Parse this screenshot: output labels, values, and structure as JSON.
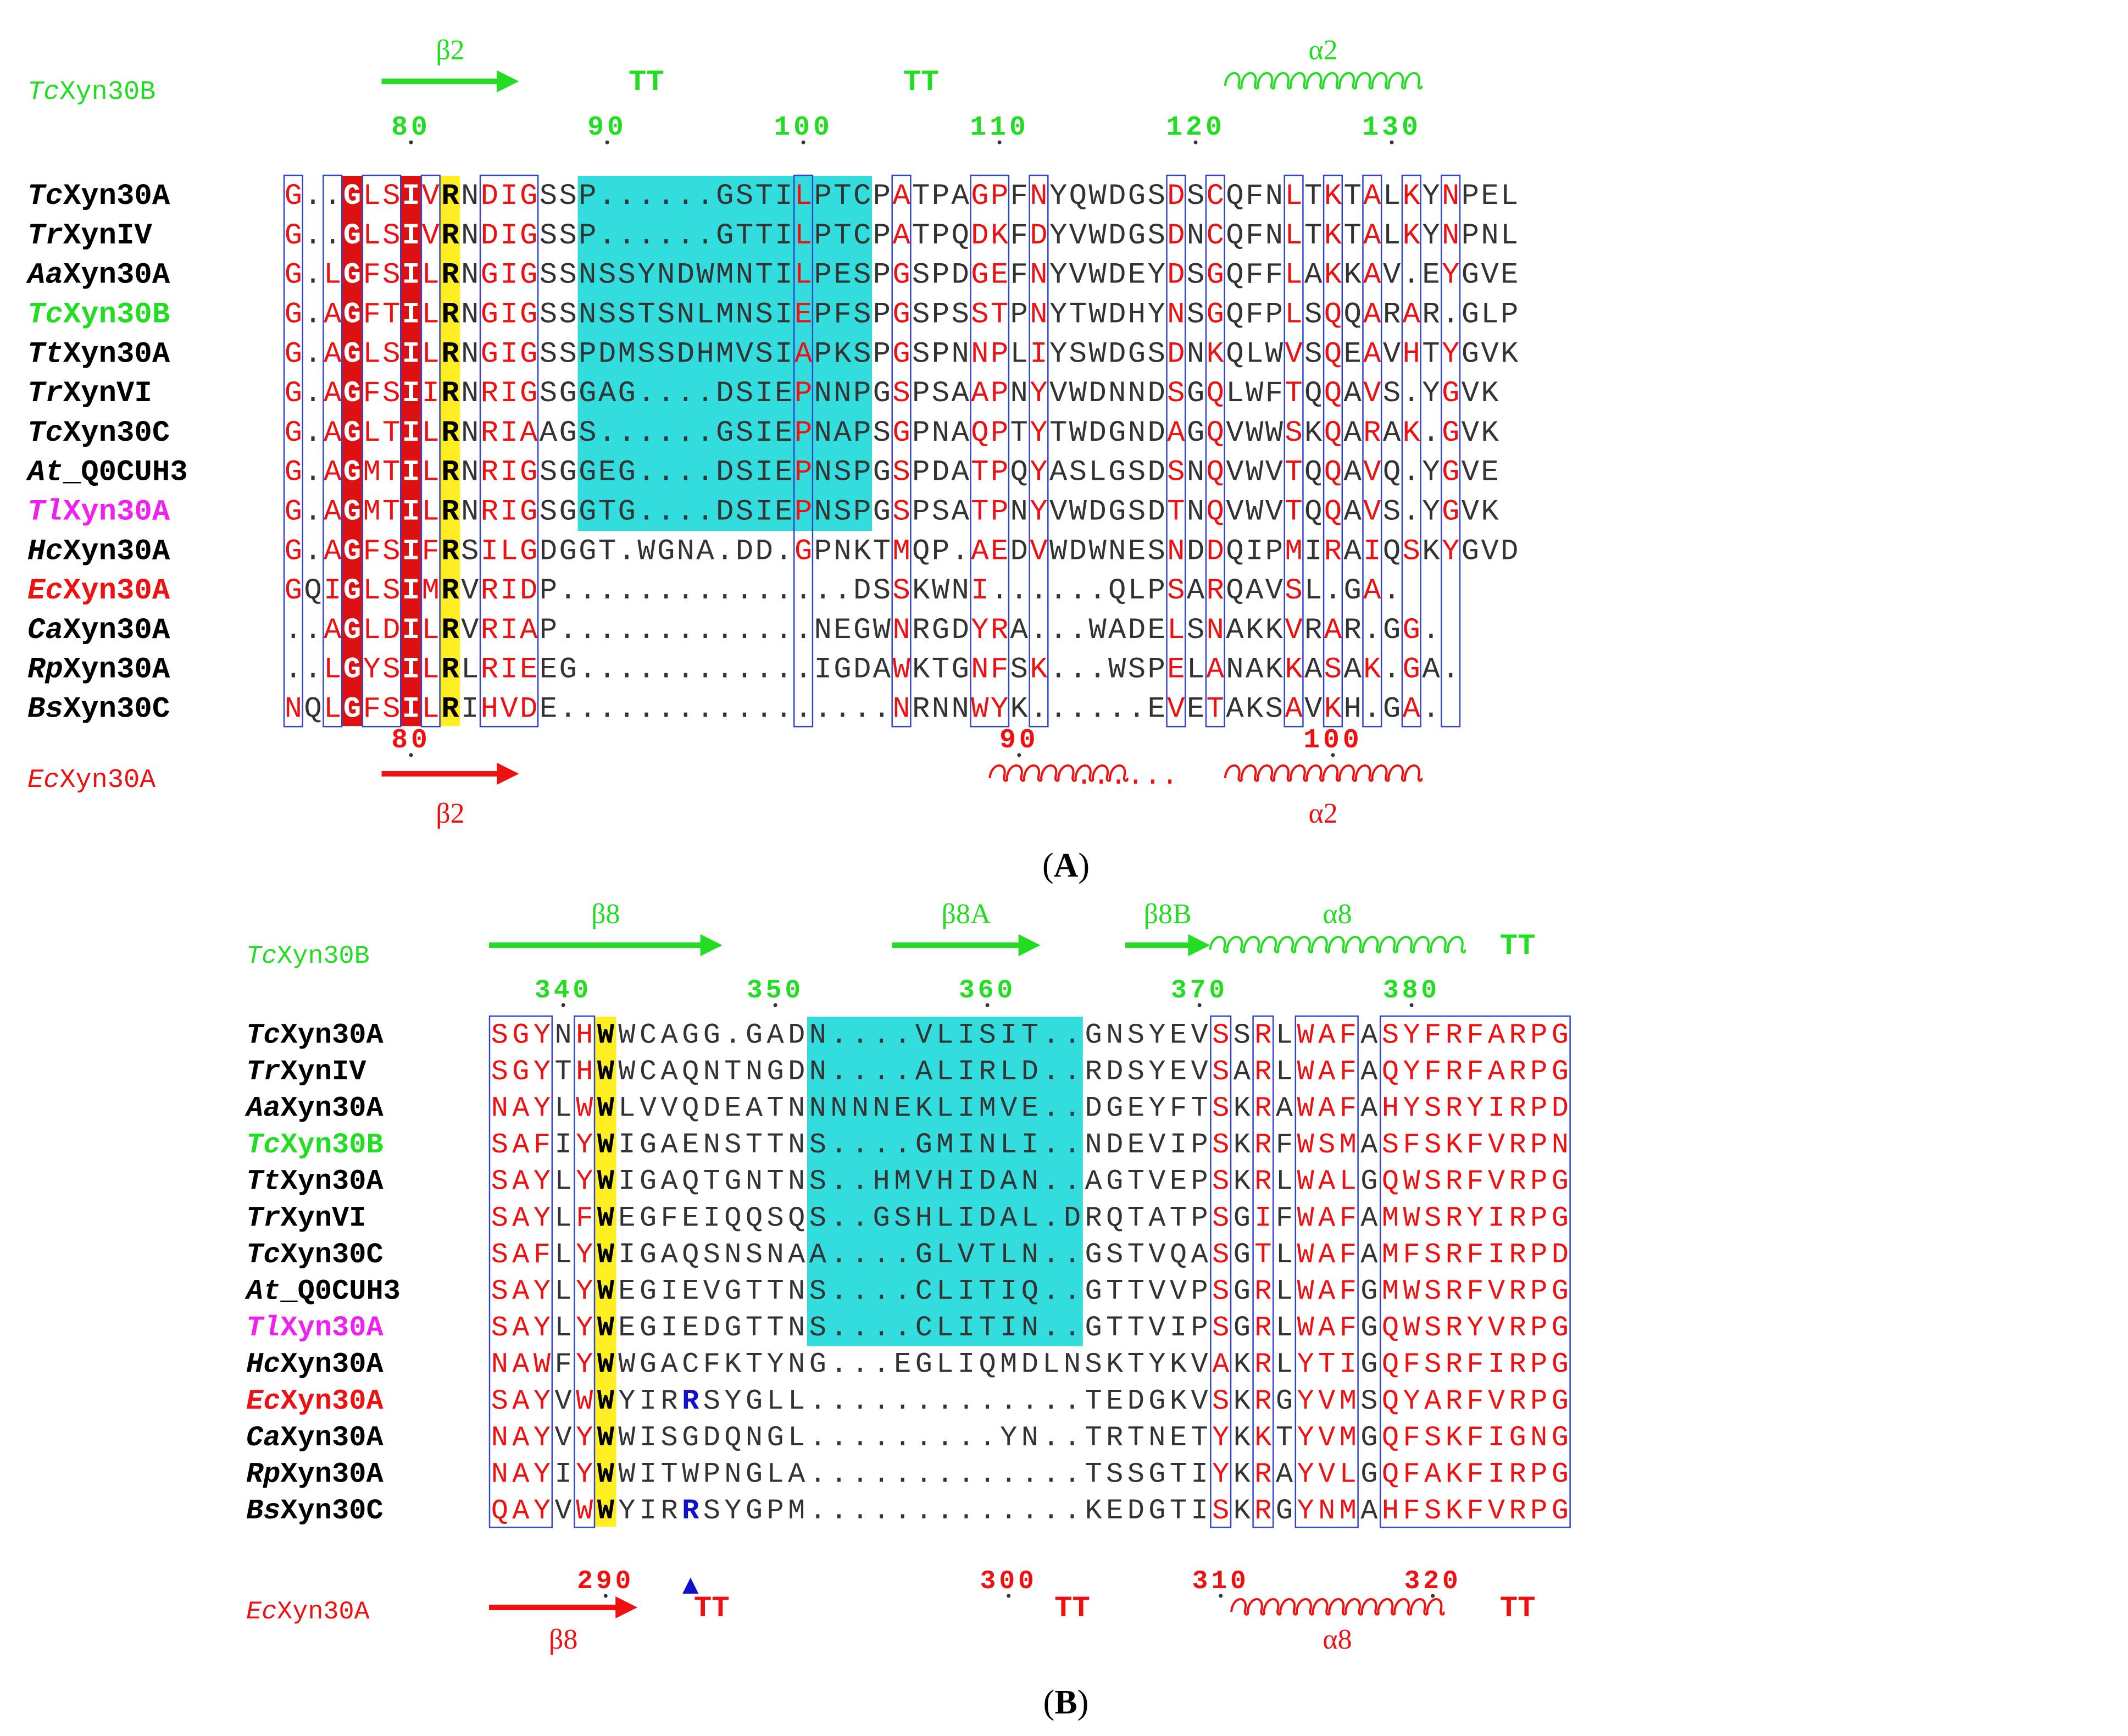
{
  "panels": [
    {
      "id": "A",
      "label": "(A)",
      "label_letter": "A",
      "names": [
        {
          "prefix": "Tc",
          "rest": "Xyn30A",
          "color": "#000000"
        },
        {
          "prefix": "Tr",
          "rest": "XynIV",
          "color": "#000000"
        },
        {
          "prefix": "Aa",
          "rest": "Xyn30A",
          "color": "#000000"
        },
        {
          "prefix": "Tc",
          "rest": "Xyn30B",
          "color": "#22dd22"
        },
        {
          "prefix": "Tt",
          "rest": "Xyn30A",
          "color": "#000000"
        },
        {
          "prefix": "Tr",
          "rest": "XynVI",
          "color": "#000000"
        },
        {
          "prefix": "Tc",
          "rest": "Xyn30C",
          "color": "#000000"
        },
        {
          "prefix": "At",
          "rest": "_Q0CUH3",
          "color": "#000000"
        },
        {
          "prefix": "Tl",
          "rest": "Xyn30A",
          "color": "#ee22ee"
        },
        {
          "prefix": "Hc",
          "rest": "Xyn30A",
          "color": "#000000"
        },
        {
          "prefix": "Ec",
          "rest": "Xyn30A",
          "color": "#ee1111"
        },
        {
          "prefix": "Ca",
          "rest": "Xyn30A",
          "color": "#000000"
        },
        {
          "prefix": "Rp",
          "rest": "Xyn30A",
          "color": "#000000"
        },
        {
          "prefix": "Bs",
          "rest": "Xyn30C",
          "color": "#000000"
        }
      ],
      "sequences": [
        "G..GLSIVRNDIGSSP......GSTILPTCPATPAGPFNYQWDGSDSCQFNLTKTALKYNPEL",
        "G..GLSIVRNDIGSSP......GTTILPTCPATPQDKFDYVWDGSDNCQFNLTKTALKYNPNL",
        "G.LGFSILRNGIGSSNSSYNDWMNTILPESPGSPDGEFNYVWDEYDSGQFFLAKKAV.EYGVE",
        "G.AGFTILRNGIGSSNSSTSNLMNSIEPFSPGSPSSTPNYTWDHYNSGQFPLSQQARAR.GLP",
        "G.AGLSILRNGIGSSPDMSSDHMVSIAPKSPGSPNNPLIYSWDGSDNKQLWVSQEAVHTYGVK",
        "G.AGFSIIRNRIGSGGAG....DSIEPNNPGSPSAAPNYVWDNNDSGQLWFTQQAVS.YGVK",
        "G.AGLTILRNRIAAGS......GSIEPNAPSGPNAQPTYTWDGNDAGQVWWSKQARAK.GVK",
        "G.AGMTILRNRIGSGGEG....DSIEPNSPGSPDATPQYASLGSDSNQVWVTQQAVQ.YGVE",
        "G.AGMTILRNRIGSGGTG....DSIEPNSPGSPSATPNYVWDGSDTNQVWVTQQAVS.YGVK",
        "G.AGFSIFRSILGDGGT.WGNA.DD.GPNKTMQP.AEDVWDWNESNDDQIPMIRAIQSKYGVD",
        "GQIGLSIMRVRIDP...............DSSKWNI......QLPSARQAVSL.GA.",
        "..AGLDILRVRIAP.............NEGWNRGDYRA...WADELSNAKKVRAR.GG.",
        "..LGYSILRLRIEEG............IGDAWKTGNFSK...WSPELANAKKASAK.GA.",
        "NQLGFSILRIHVDE.................NRNNWYK......EVETAKSAVKH.GA."
      ],
      "top_numbers": [
        {
          "text": "80",
          "col": 6
        },
        {
          "text": "90",
          "col": 16
        },
        {
          "text": "100",
          "col": 26
        },
        {
          "text": "110",
          "col": 36
        },
        {
          "text": "120",
          "col": 46
        },
        {
          "text": "130",
          "col": 56
        }
      ],
      "bottom_numbers": [
        {
          "text": "80",
          "col": 6
        },
        {
          "text": "90",
          "col": 37
        },
        {
          "text": "100",
          "col": 53
        }
      ],
      "top_ss_name": "TcXyn30B",
      "top_ss_name_prefix": "Tc",
      "top_ss_name_rest": "Xyn30B",
      "top_ss": [
        {
          "type": "arrow",
          "label": "β2",
          "start": 5,
          "end": 11
        },
        {
          "type": "turn",
          "label": "TT",
          "col": 18
        },
        {
          "type": "turn",
          "label": "TT",
          "col": 32
        },
        {
          "type": "helix",
          "label": "α2",
          "start": 48,
          "end": 57
        }
      ],
      "bottom_ss_name_prefix": "Ec",
      "bottom_ss_name_rest": "Xyn30A",
      "bottom_ss": [
        {
          "type": "arrow",
          "label": "β2",
          "start": 5,
          "end": 11
        },
        {
          "type": "helix",
          "label": "",
          "start": 36,
          "end": 42
        },
        {
          "type": "helix",
          "label": "α2",
          "start": 48,
          "end": 57
        }
      ],
      "red_cols": [
        3,
        6
      ],
      "yellow_cols": [
        8
      ],
      "cyan_range": [
        15,
        29
      ],
      "boxed_cols": [
        0,
        2,
        4,
        5,
        7,
        10,
        11,
        12,
        26,
        31,
        35,
        36,
        38,
        45,
        47,
        51,
        53,
        55,
        57,
        59
      ],
      "colors": {
        "identity_bg": "#dd1111",
        "strong_bg": "#ffee22",
        "insertion_bg": "#33dddd",
        "similar_text": "#ee1111",
        "box": "#3344cc",
        "top_ss": "#22dd22",
        "bottom_ss": "#ee1111"
      }
    },
    {
      "id": "B",
      "label": "(B)",
      "label_letter": "B",
      "names": [
        {
          "prefix": "Tc",
          "rest": "Xyn30A",
          "color": "#000000"
        },
        {
          "prefix": "Tr",
          "rest": "XynIV",
          "color": "#000000"
        },
        {
          "prefix": "Aa",
          "rest": "Xyn30A",
          "color": "#000000"
        },
        {
          "prefix": "Tc",
          "rest": "Xyn30B",
          "color": "#22dd22"
        },
        {
          "prefix": "Tt",
          "rest": "Xyn30A",
          "color": "#000000"
        },
        {
          "prefix": "Tr",
          "rest": "XynVI",
          "color": "#000000"
        },
        {
          "prefix": "Tc",
          "rest": "Xyn30C",
          "color": "#000000"
        },
        {
          "prefix": "At",
          "rest": "_Q0CUH3",
          "color": "#000000"
        },
        {
          "prefix": "Tl",
          "rest": "Xyn30A",
          "color": "#ee22ee"
        },
        {
          "prefix": "Hc",
          "rest": "Xyn30A",
          "color": "#000000"
        },
        {
          "prefix": "Ec",
          "rest": "Xyn30A",
          "color": "#ee1111"
        },
        {
          "prefix": "Ca",
          "rest": "Xyn30A",
          "color": "#000000"
        },
        {
          "prefix": "Rp",
          "rest": "Xyn30A",
          "color": "#000000"
        },
        {
          "prefix": "Bs",
          "rest": "Xyn30C",
          "color": "#000000"
        }
      ],
      "sequences": [
        "SGYNHWWCAGG.GADN....VLISIT..GNSYEVSSRLWAFASYFRFARPG",
        "SGYTHWWCAQNTNGDN....ALIRLD..RDSYEVSARLWAFAQYFRFARPG",
        "NAYLWWLVVQDEATNNNNNEKLIMVE..DGEYFTSKRAWAFAHYSRYIRPD",
        "SAFIYWIGAENSTTNS....GMINLI..NDEVIPSKRFWSMASFSKFVRPN",
        "SAYLYWIGAQTGNTNS..HMVHIDAN..AGTVEPSKRLWALGQWSRFVRPG",
        "SAYLFWEGFEIQQSQS..GSHLIDAL.DRQTATPSGIFWAFAMWSRYIRPG",
        "SAFLYWIGAQSNSNAA....GLVTLN..GSTVQASGTLWAFAMFSRFIRPD",
        "SAYLYWEGIEVGTTNS....CLITIQ..GTTVVPSGRLWAFGMWSRFVRPG",
        "SAYLYWEGIEDGTTNS....CLITIN..GTTVIPSGRLWAFGQWSRYVRPG",
        "NAWFYWWGACFKTYNG...EGLIQMDLNSKTYKVAKRLYTIGQFSRFIRPG",
        "SAYVWWYIRRSYGLL.............TEDGKVSKRGYVMSQYARFVRPG",
        "NAYVYWWISGDQNGL.........YN..TRTNETYKKTYVMGQFSKFIGNG",
        "NAYIYWWITWPNGLA.............TSSGTIYKRAYVLGQFAKFIRPG",
        "QAYVWWYIRRSYGPM.............KEDGTISKRGYNMAHFSKFVRPG"
      ],
      "top_numbers": [
        {
          "text": "340",
          "col": 3
        },
        {
          "text": "350",
          "col": 13
        },
        {
          "text": "360",
          "col": 23
        },
        {
          "text": "370",
          "col": 33
        },
        {
          "text": "380",
          "col": 43
        }
      ],
      "bottom_numbers": [
        {
          "text": "290",
          "col": 5
        },
        {
          "text": "300",
          "col": 24
        },
        {
          "text": "310",
          "col": 34
        },
        {
          "text": "320",
          "col": 44
        }
      ],
      "top_ss_name_prefix": "Tc",
      "top_ss_name_rest": "Xyn30B",
      "top_ss": [
        {
          "type": "arrow",
          "label": "β8",
          "start": 0,
          "end": 10
        },
        {
          "type": "arrow",
          "label": "β8A",
          "start": 19,
          "end": 25
        },
        {
          "type": "arrow",
          "label": "β8B",
          "start": 30,
          "end": 33
        },
        {
          "type": "helix",
          "label": "α8",
          "start": 34,
          "end": 45
        },
        {
          "type": "turn",
          "label": "TT",
          "col": 48
        }
      ],
      "bottom_ss_name_prefix": "Ec",
      "bottom_ss_name_rest": "Xyn30A",
      "bottom_ss": [
        {
          "type": "arrow",
          "label": "β8",
          "start": 0,
          "end": 6
        },
        {
          "type": "turn",
          "label": "TT",
          "col": 10
        },
        {
          "type": "turn",
          "label": "TT",
          "col": 27
        },
        {
          "type": "helix",
          "label": "α8",
          "start": 35,
          "end": 44
        },
        {
          "type": "turn",
          "label": "TT",
          "col": 48
        }
      ],
      "red_cols": [],
      "yellow_cols": [
        5
      ],
      "cyan_range": [
        15,
        27
      ],
      "boxed_cols": [
        0,
        1,
        2,
        4,
        34,
        36,
        38,
        39,
        40,
        42
      ],
      "boxed_ranges": [
        [
          43,
          50
        ]
      ],
      "blue_marks": [
        {
          "row": 10,
          "col": 9
        },
        {
          "row": 13,
          "col": 9
        }
      ],
      "marker": {
        "symbol": "▲",
        "col": 9
      },
      "colors": {
        "identity_bg": "#dd1111",
        "strong_bg": "#ffee22",
        "insertion_bg": "#33dddd",
        "similar_text": "#ee1111",
        "box": "#3344cc",
        "top_ss": "#22dd22",
        "bottom_ss": "#ee1111",
        "marker": "#1111cc"
      }
    }
  ]
}
